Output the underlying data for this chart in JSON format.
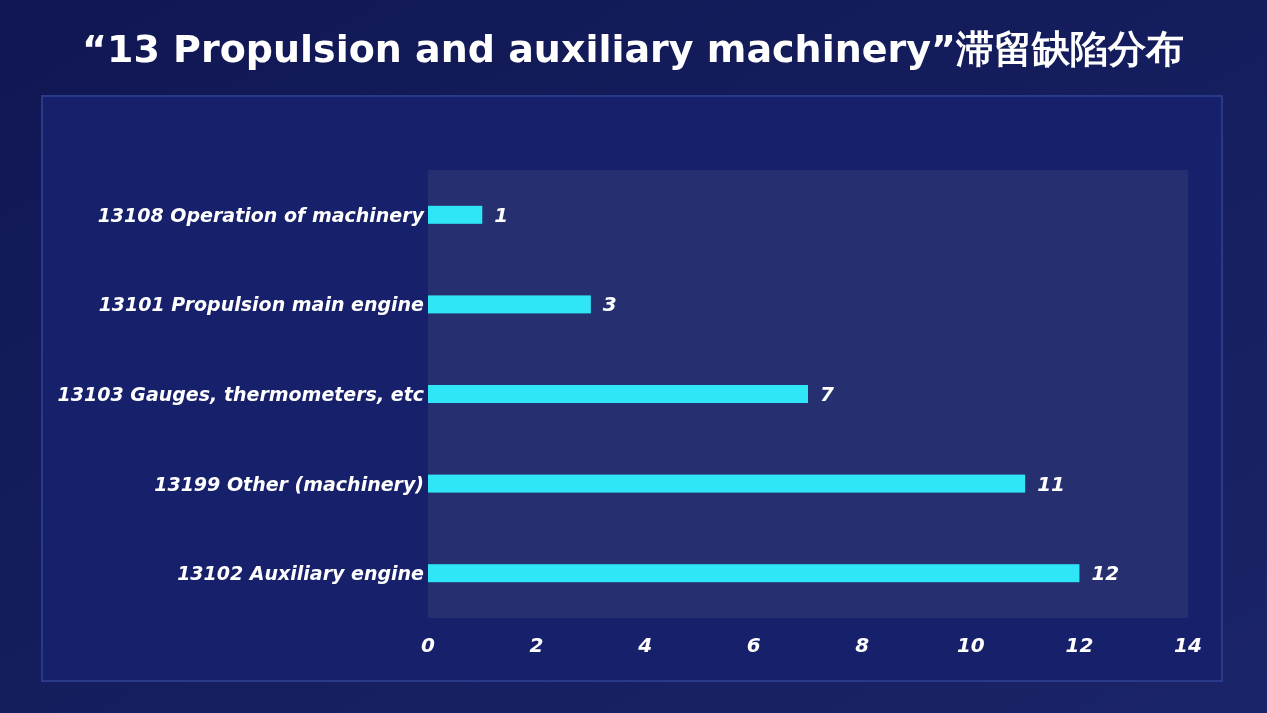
{
  "chart_data": {
    "type": "bar",
    "orientation": "horizontal",
    "title": "“13 Propulsion and auxiliary machinery”滞留缺陷分布",
    "categories": [
      "13108 Operation of machinery",
      "13101 Propulsion main engine",
      "13103 Gauges, thermometers, etc",
      "13199 Other (machinery)",
      "13102 Auxiliary engine"
    ],
    "values": [
      1,
      3,
      7,
      11,
      12
    ],
    "color": "#2ee6f5",
    "xlim": [
      0,
      14
    ],
    "xticks": [
      0,
      2,
      4,
      6,
      8,
      10,
      12,
      14
    ],
    "data_labels": true
  }
}
